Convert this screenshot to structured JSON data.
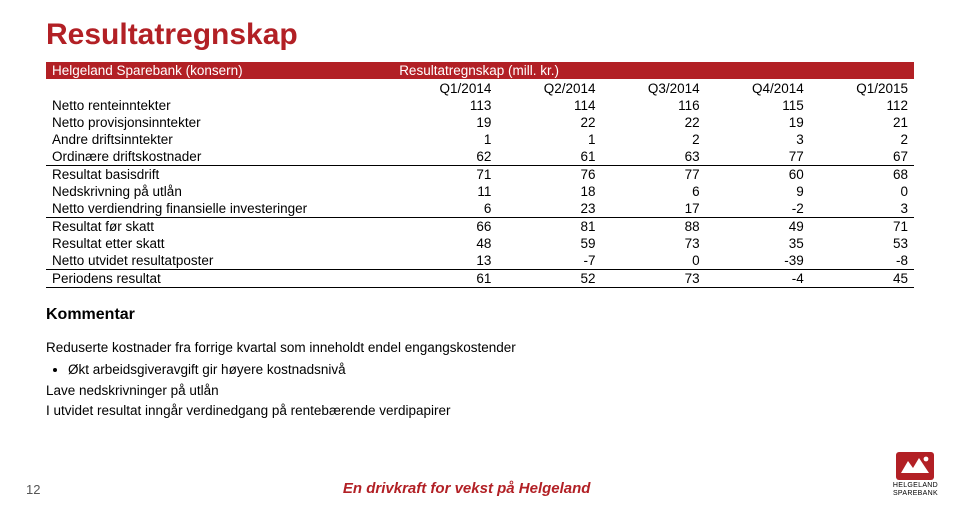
{
  "title": "Resultatregnskap",
  "title_color": "#b22025",
  "table": {
    "header_bg": "#b22025",
    "header_fg": "#ffffff",
    "entity": "Helgeland Sparebank (konsern)",
    "caption": "Resultatregnskap (mill. kr.)",
    "columns": [
      "Q1/2014",
      "Q2/2014",
      "Q3/2014",
      "Q4/2014",
      "Q1/2015"
    ],
    "rows": [
      {
        "label": "Netto renteinntekter",
        "v": [
          113,
          114,
          116,
          115,
          112
        ],
        "border": false
      },
      {
        "label": "Netto provisjonsinntekter",
        "v": [
          19,
          22,
          22,
          19,
          21
        ],
        "border": false
      },
      {
        "label": "Andre driftsinntekter",
        "v": [
          1,
          1,
          2,
          3,
          2
        ],
        "border": false
      },
      {
        "label": "Ordinære driftskostnader",
        "v": [
          62,
          61,
          63,
          77,
          67
        ],
        "border": true
      },
      {
        "label": "Resultat basisdrift",
        "v": [
          71,
          76,
          77,
          60,
          68
        ],
        "border": false
      },
      {
        "label": "Nedskrivning på utlån",
        "v": [
          11,
          18,
          6,
          9,
          0
        ],
        "border": false
      },
      {
        "label": "Netto verdiendring finansielle investeringer",
        "v": [
          6,
          23,
          17,
          -2,
          3
        ],
        "border": true
      },
      {
        "label": "Resultat før skatt",
        "v": [
          66,
          81,
          88,
          49,
          71
        ],
        "border": false
      },
      {
        "label": "Resultat etter skatt",
        "v": [
          48,
          59,
          73,
          35,
          53
        ],
        "border": false
      },
      {
        "label": "Netto utvidet resultatposter",
        "v": [
          13,
          -7,
          0,
          -39,
          -8
        ],
        "border": true
      },
      {
        "label": "Periodens resultat",
        "v": [
          61,
          52,
          73,
          -4,
          45
        ],
        "border": true
      }
    ]
  },
  "kommentar": {
    "heading": "Kommentar",
    "lead": "Reduserte kostnader fra forrige kvartal som inneholdt endel engangskostender",
    "bullet": "Økt arbeidsgiveravgift gir høyere kostnadsnivå",
    "line2": "Lave nedskrivninger på utlån",
    "line3": "I utvidet resultat inngår verdinedgang på rentebærende verdipapirer"
  },
  "footer": {
    "page_no": "12",
    "slogan": "En drivkraft for vekst på Helgeland",
    "slogan_color": "#b22025",
    "logo_primary": "#b22025",
    "logo_label_top": "HELGELAND",
    "logo_label_bottom": "SPAREBANK"
  }
}
